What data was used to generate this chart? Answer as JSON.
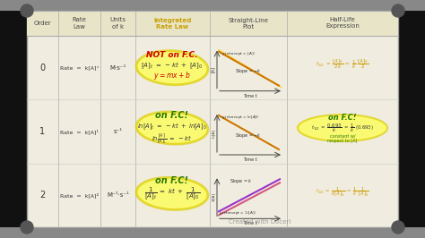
{
  "bg_outer": "#1a1a1a",
  "bg_board": "#f0ede0",
  "header_bg": "#e8e4c8",
  "header_color": "#444444",
  "integrated_color": "#c8a000",
  "border_color": "#aaaaaa",
  "text_color": "#333333",
  "col_headers": [
    "Order",
    "Rate\nLaw",
    "Units\nof k",
    "Integrated\nRate Law",
    "Straight-Line\nPlot",
    "Half-Life\nExpression"
  ],
  "row_orders": [
    "0",
    "1",
    "2"
  ],
  "row_rate_laws": [
    "Rate  =  k[A]°",
    "Rate  =  k[A]¹",
    "Rate  =  k[A]²"
  ],
  "row_units_k": [
    "M·s⁻¹",
    "s⁻¹",
    "M⁻¹·s⁻¹"
  ],
  "watermark": "Created with Doceri"
}
